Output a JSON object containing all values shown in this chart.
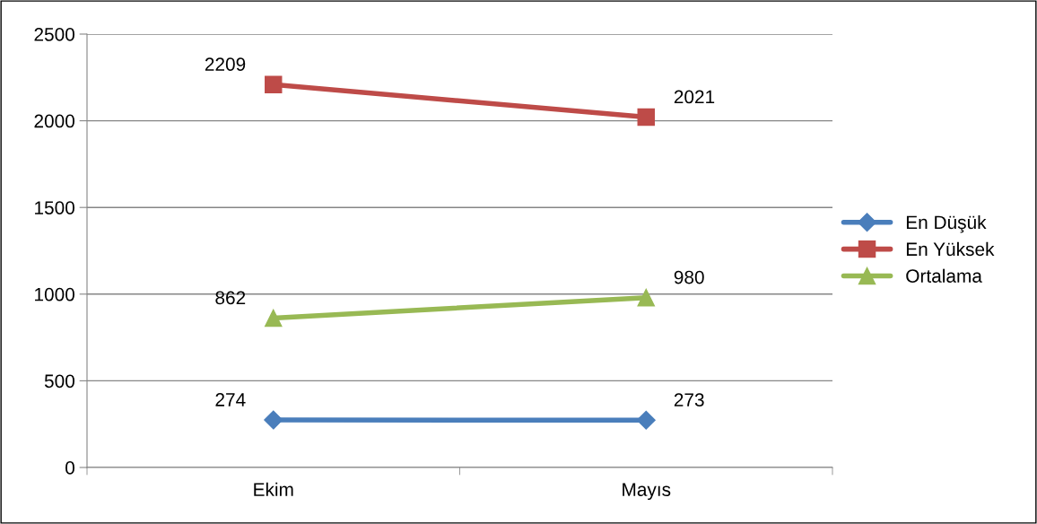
{
  "chart_data": {
    "type": "line",
    "categories": [
      "Ekim",
      "Mayıs"
    ],
    "series": [
      {
        "name": "En Düşük",
        "color": "#4a7ebb",
        "values": [
          274,
          273
        ],
        "marker": "diamond"
      },
      {
        "name": "En Yüksek",
        "color": "#be4b48",
        "values": [
          2209,
          2021
        ],
        "marker": "square"
      },
      {
        "name": "Ortalama",
        "color": "#98b954",
        "values": [
          862,
          980
        ],
        "marker": "triangle"
      }
    ],
    "ylim": [
      0,
      2500
    ],
    "yticks": [
      0,
      500,
      1000,
      1500,
      2000,
      2500
    ],
    "grid": "y",
    "legend": "right",
    "data_labels": true,
    "line_style": "solid"
  }
}
